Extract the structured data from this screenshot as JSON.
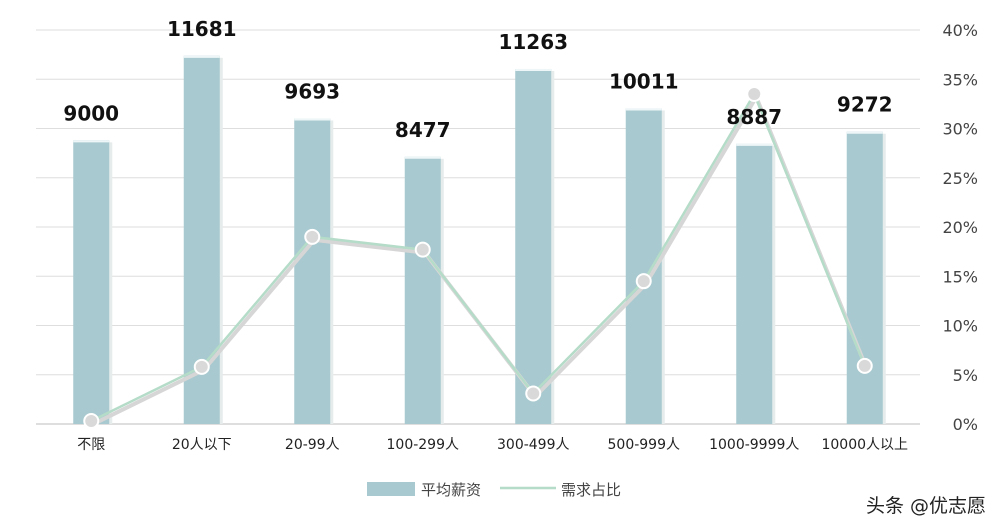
{
  "chart_data": {
    "type": "bar",
    "categories": [
      "不限",
      "20人以下",
      "20-99人",
      "100-299人",
      "300-499人",
      "500-999人",
      "1000-9999人",
      "10000人以上"
    ],
    "series": [
      {
        "name": "平均薪资",
        "type": "bar",
        "axis": "left",
        "values": [
          9000,
          11681,
          9693,
          8477,
          11263,
          10011,
          8887,
          9272
        ],
        "color": "#a7c9cf"
      },
      {
        "name": "需求占比",
        "type": "line",
        "axis": "right",
        "values": [
          0.3,
          5.8,
          19.0,
          17.7,
          3.1,
          14.5,
          33.5,
          5.9
        ],
        "color": "#b5dcc8"
      }
    ],
    "y_left_lim": [
      0,
      12500
    ],
    "y_right_lim": [
      0,
      40
    ],
    "y_right_ticks": [
      "0%",
      "5%",
      "10%",
      "15%",
      "20%",
      "25%",
      "30%",
      "35%",
      "40%"
    ],
    "grid": true,
    "legend_position": "bottom"
  },
  "watermark": "头条 @优志愿"
}
